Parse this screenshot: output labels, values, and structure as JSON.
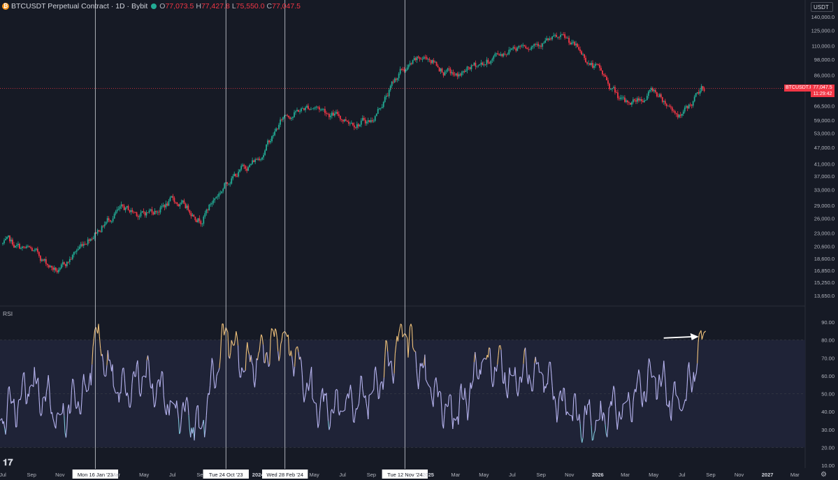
{
  "header": {
    "symbol": "BTCUSDT Perpetual Contract · 1D · Bybit",
    "open_label": "O",
    "open": "77,073.5",
    "high_label": "H",
    "high": "77,427.8",
    "low_label": "L",
    "low": "75,550.0",
    "close_label": "C",
    "close": "77,047.5"
  },
  "currency_button": "USDT",
  "indicator_label": "RSI",
  "last_price_label": {
    "symbol": "BTCUSDT.P",
    "price": "77,047.5",
    "countdown": "11:29:42"
  },
  "colors": {
    "bg": "#161a25",
    "up": "#22ab94",
    "down": "#f23645",
    "rsi": "#b7b4f0",
    "rsi_high": "#f0c27b",
    "rsi_low": "#7ec4d8",
    "band": "#1f2337"
  },
  "chart_data": [
    {
      "type": "candlestick",
      "title": "BTCUSDT Perpetual Contract · 1D · Bybit",
      "y_scale": "log",
      "y_ticks": [
        140000,
        125000,
        110000,
        98000,
        86000,
        66500,
        59000,
        53000,
        47000,
        41000,
        37000,
        33000,
        29000,
        26000,
        23000,
        20600,
        18600,
        16850,
        15250,
        13650
      ],
      "y_tick_labels": [
        "140,000.0",
        "125,000.0",
        "110,000.0",
        "98,000.0",
        "86,000.0",
        "66,500.0",
        "59,000.0",
        "53,000.0",
        "47,000.0",
        "41,000.0",
        "37,000.0",
        "33,000.0",
        "29,000.0",
        "26,000.0",
        "23,000.0",
        "20,600.0",
        "18,600.0",
        "16,850.0",
        "15,250.0",
        "13,650.0"
      ],
      "x": [
        "2022-07",
        "2022-09",
        "2022-11",
        "2023-01",
        "2023-03",
        "2023-05",
        "2023-07",
        "2023-09",
        "2023-11",
        "2024-01",
        "2024-03",
        "2024-05",
        "2024-07",
        "2024-09",
        "2024-11",
        "2025-01",
        "2025-03",
        "2025-05",
        "2025-07",
        "2025-09",
        "2025-11",
        "2026-01",
        "2026-03",
        "2026-05",
        "2026-07",
        "2026-08"
      ],
      "close": [
        21000,
        19500,
        16500,
        22500,
        27500,
        27000,
        30000,
        26500,
        36500,
        43000,
        62000,
        67000,
        60000,
        59000,
        88000,
        100000,
        84000,
        95000,
        110000,
        117000,
        112000,
        90000,
        66000,
        76000,
        61000,
        77047.5
      ],
      "last_price": 77047.5,
      "vertical_markers": [
        "Mon 16 Jan '23",
        "Tue 24 Oct '23",
        "Wed 28 Feb '24",
        "Tue 12 Nov '24"
      ]
    },
    {
      "type": "line",
      "name": "RSI",
      "y_ticks": [
        90,
        80,
        70,
        60,
        50,
        40,
        30,
        20,
        10
      ],
      "y_tick_labels": [
        "90.00",
        "80.00",
        "70.00",
        "60.00",
        "50.00",
        "40.00",
        "30.00",
        "20.00",
        "10.00"
      ],
      "band": [
        20,
        80
      ],
      "x": [
        "2022-07",
        "2022-09",
        "2022-11",
        "2023-01",
        "2023-01-16",
        "2023-03",
        "2023-05",
        "2023-07",
        "2023-09",
        "2023-10-24",
        "2023-12",
        "2024-02-28",
        "2024-05",
        "2024-07",
        "2024-09",
        "2024-11-12",
        "2025-01",
        "2025-03",
        "2025-05",
        "2025-07",
        "2025-09",
        "2025-11",
        "2026-01",
        "2026-03",
        "2026-05",
        "2026-07",
        "2026-08"
      ],
      "values": [
        35,
        55,
        38,
        52,
        88,
        50,
        60,
        45,
        30,
        87,
        62,
        85,
        45,
        40,
        50,
        84,
        55,
        35,
        70,
        60,
        62,
        38,
        35,
        45,
        60,
        40,
        85
      ]
    }
  ],
  "x_axis_labels": [
    "Jul",
    "Sep",
    "Nov",
    "Mon 16 Jan '23",
    "Mar",
    "May",
    "Jul",
    "Sep",
    "Tue 24 Oct '23",
    "2024",
    "Wed 28 Feb '24",
    "May",
    "Jul",
    "Sep",
    "Tue 12 Nov '24",
    "2025",
    "Mar",
    "May",
    "Jul",
    "Sep",
    "Nov",
    "2026",
    "Mar",
    "May",
    "Jul",
    "Sep",
    "Nov",
    "2027",
    "Mar"
  ]
}
